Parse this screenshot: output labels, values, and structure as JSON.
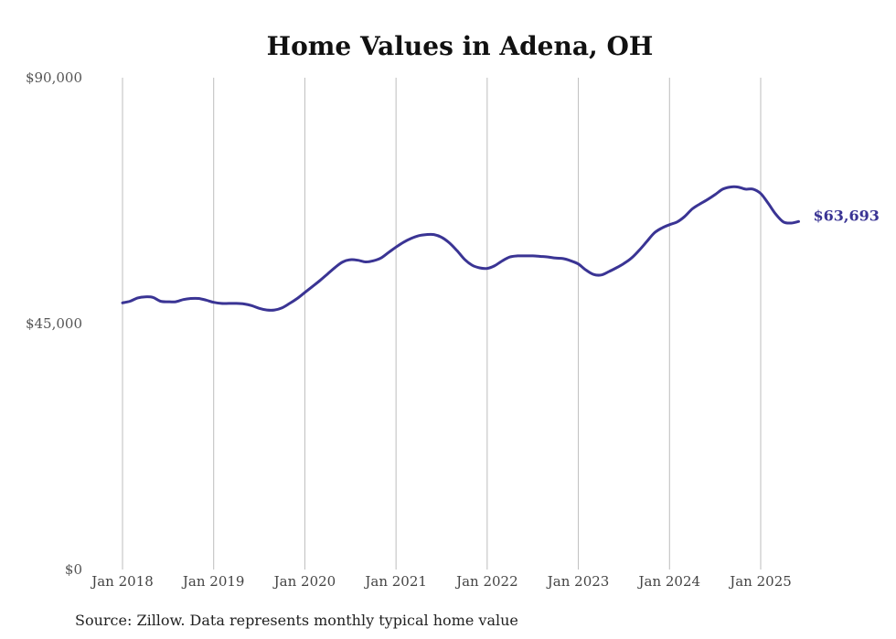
{
  "chart_data": {
    "type": "line",
    "title": "Home Values in Adena, OH",
    "source": "Source: Zillow. Data represents monthly typical home value",
    "ylim": [
      0,
      90000
    ],
    "y_ticks": [
      {
        "value": 0,
        "label": "$0"
      },
      {
        "value": 45000,
        "label": "$45,000"
      },
      {
        "value": 90000,
        "label": "$90,000"
      }
    ],
    "x_ticks": [
      {
        "value": "2018-01",
        "label": "Jan 2018"
      },
      {
        "value": "2019-01",
        "label": "Jan 2019"
      },
      {
        "value": "2020-01",
        "label": "Jan 2020"
      },
      {
        "value": "2021-01",
        "label": "Jan 2021"
      },
      {
        "value": "2022-01",
        "label": "Jan 2022"
      },
      {
        "value": "2023-01",
        "label": "Jan 2023"
      },
      {
        "value": "2024-01",
        "label": "Jan 2024"
      },
      {
        "value": "2025-01",
        "label": "Jan 2025"
      }
    ],
    "grid": "vertical",
    "line_color": "#3a3494",
    "end_label": "$63,693",
    "series": [
      {
        "values": [
          {
            "x": "2018-01",
            "y": 48800
          },
          {
            "x": "2018-02",
            "y": 49100
          },
          {
            "x": "2018-03",
            "y": 49700
          },
          {
            "x": "2018-04",
            "y": 49900
          },
          {
            "x": "2018-05",
            "y": 49800
          },
          {
            "x": "2018-06",
            "y": 49100
          },
          {
            "x": "2018-07",
            "y": 49000
          },
          {
            "x": "2018-08",
            "y": 49000
          },
          {
            "x": "2018-09",
            "y": 49400
          },
          {
            "x": "2018-10",
            "y": 49600
          },
          {
            "x": "2018-11",
            "y": 49600
          },
          {
            "x": "2018-12",
            "y": 49300
          },
          {
            "x": "2019-01",
            "y": 48900
          },
          {
            "x": "2019-02",
            "y": 48700
          },
          {
            "x": "2019-03",
            "y": 48700
          },
          {
            "x": "2019-04",
            "y": 48700
          },
          {
            "x": "2019-05",
            "y": 48600
          },
          {
            "x": "2019-06",
            "y": 48300
          },
          {
            "x": "2019-07",
            "y": 47800
          },
          {
            "x": "2019-08",
            "y": 47500
          },
          {
            "x": "2019-09",
            "y": 47500
          },
          {
            "x": "2019-10",
            "y": 47900
          },
          {
            "x": "2019-11",
            "y": 48700
          },
          {
            "x": "2019-12",
            "y": 49600
          },
          {
            "x": "2020-01",
            "y": 50700
          },
          {
            "x": "2020-02",
            "y": 51800
          },
          {
            "x": "2020-03",
            "y": 52900
          },
          {
            "x": "2020-04",
            "y": 54100
          },
          {
            "x": "2020-05",
            "y": 55300
          },
          {
            "x": "2020-06",
            "y": 56300
          },
          {
            "x": "2020-07",
            "y": 56700
          },
          {
            "x": "2020-08",
            "y": 56600
          },
          {
            "x": "2020-09",
            "y": 56300
          },
          {
            "x": "2020-10",
            "y": 56500
          },
          {
            "x": "2020-11",
            "y": 57000
          },
          {
            "x": "2020-12",
            "y": 58000
          },
          {
            "x": "2021-01",
            "y": 59000
          },
          {
            "x": "2021-02",
            "y": 59900
          },
          {
            "x": "2021-03",
            "y": 60600
          },
          {
            "x": "2021-04",
            "y": 61100
          },
          {
            "x": "2021-05",
            "y": 61300
          },
          {
            "x": "2021-06",
            "y": 61300
          },
          {
            "x": "2021-07",
            "y": 60800
          },
          {
            "x": "2021-08",
            "y": 59800
          },
          {
            "x": "2021-09",
            "y": 58400
          },
          {
            "x": "2021-10",
            "y": 56800
          },
          {
            "x": "2021-11",
            "y": 55700
          },
          {
            "x": "2021-12",
            "y": 55200
          },
          {
            "x": "2022-01",
            "y": 55100
          },
          {
            "x": "2022-02",
            "y": 55600
          },
          {
            "x": "2022-03",
            "y": 56500
          },
          {
            "x": "2022-04",
            "y": 57200
          },
          {
            "x": "2022-05",
            "y": 57400
          },
          {
            "x": "2022-06",
            "y": 57400
          },
          {
            "x": "2022-07",
            "y": 57400
          },
          {
            "x": "2022-08",
            "y": 57300
          },
          {
            "x": "2022-09",
            "y": 57200
          },
          {
            "x": "2022-10",
            "y": 57000
          },
          {
            "x": "2022-11",
            "y": 56900
          },
          {
            "x": "2022-12",
            "y": 56500
          },
          {
            "x": "2023-01",
            "y": 55900
          },
          {
            "x": "2023-02",
            "y": 54800
          },
          {
            "x": "2023-03",
            "y": 54000
          },
          {
            "x": "2023-04",
            "y": 53900
          },
          {
            "x": "2023-05",
            "y": 54500
          },
          {
            "x": "2023-06",
            "y": 55200
          },
          {
            "x": "2023-07",
            "y": 56000
          },
          {
            "x": "2023-08",
            "y": 57000
          },
          {
            "x": "2023-09",
            "y": 58400
          },
          {
            "x": "2023-10",
            "y": 60000
          },
          {
            "x": "2023-11",
            "y": 61600
          },
          {
            "x": "2023-12",
            "y": 62500
          },
          {
            "x": "2024-01",
            "y": 63100
          },
          {
            "x": "2024-02",
            "y": 63600
          },
          {
            "x": "2024-03",
            "y": 64600
          },
          {
            "x": "2024-04",
            "y": 66000
          },
          {
            "x": "2024-05",
            "y": 66900
          },
          {
            "x": "2024-06",
            "y": 67700
          },
          {
            "x": "2024-07",
            "y": 68600
          },
          {
            "x": "2024-08",
            "y": 69600
          },
          {
            "x": "2024-09",
            "y": 70000
          },
          {
            "x": "2024-10",
            "y": 70000
          },
          {
            "x": "2024-11",
            "y": 69600
          },
          {
            "x": "2024-12",
            "y": 69600
          },
          {
            "x": "2025-01",
            "y": 68800
          },
          {
            "x": "2025-02",
            "y": 67000
          },
          {
            "x": "2025-03",
            "y": 65000
          },
          {
            "x": "2025-04",
            "y": 63600
          },
          {
            "x": "2025-05",
            "y": 63400
          },
          {
            "x": "2025-06",
            "y": 63693
          }
        ]
      }
    ]
  }
}
